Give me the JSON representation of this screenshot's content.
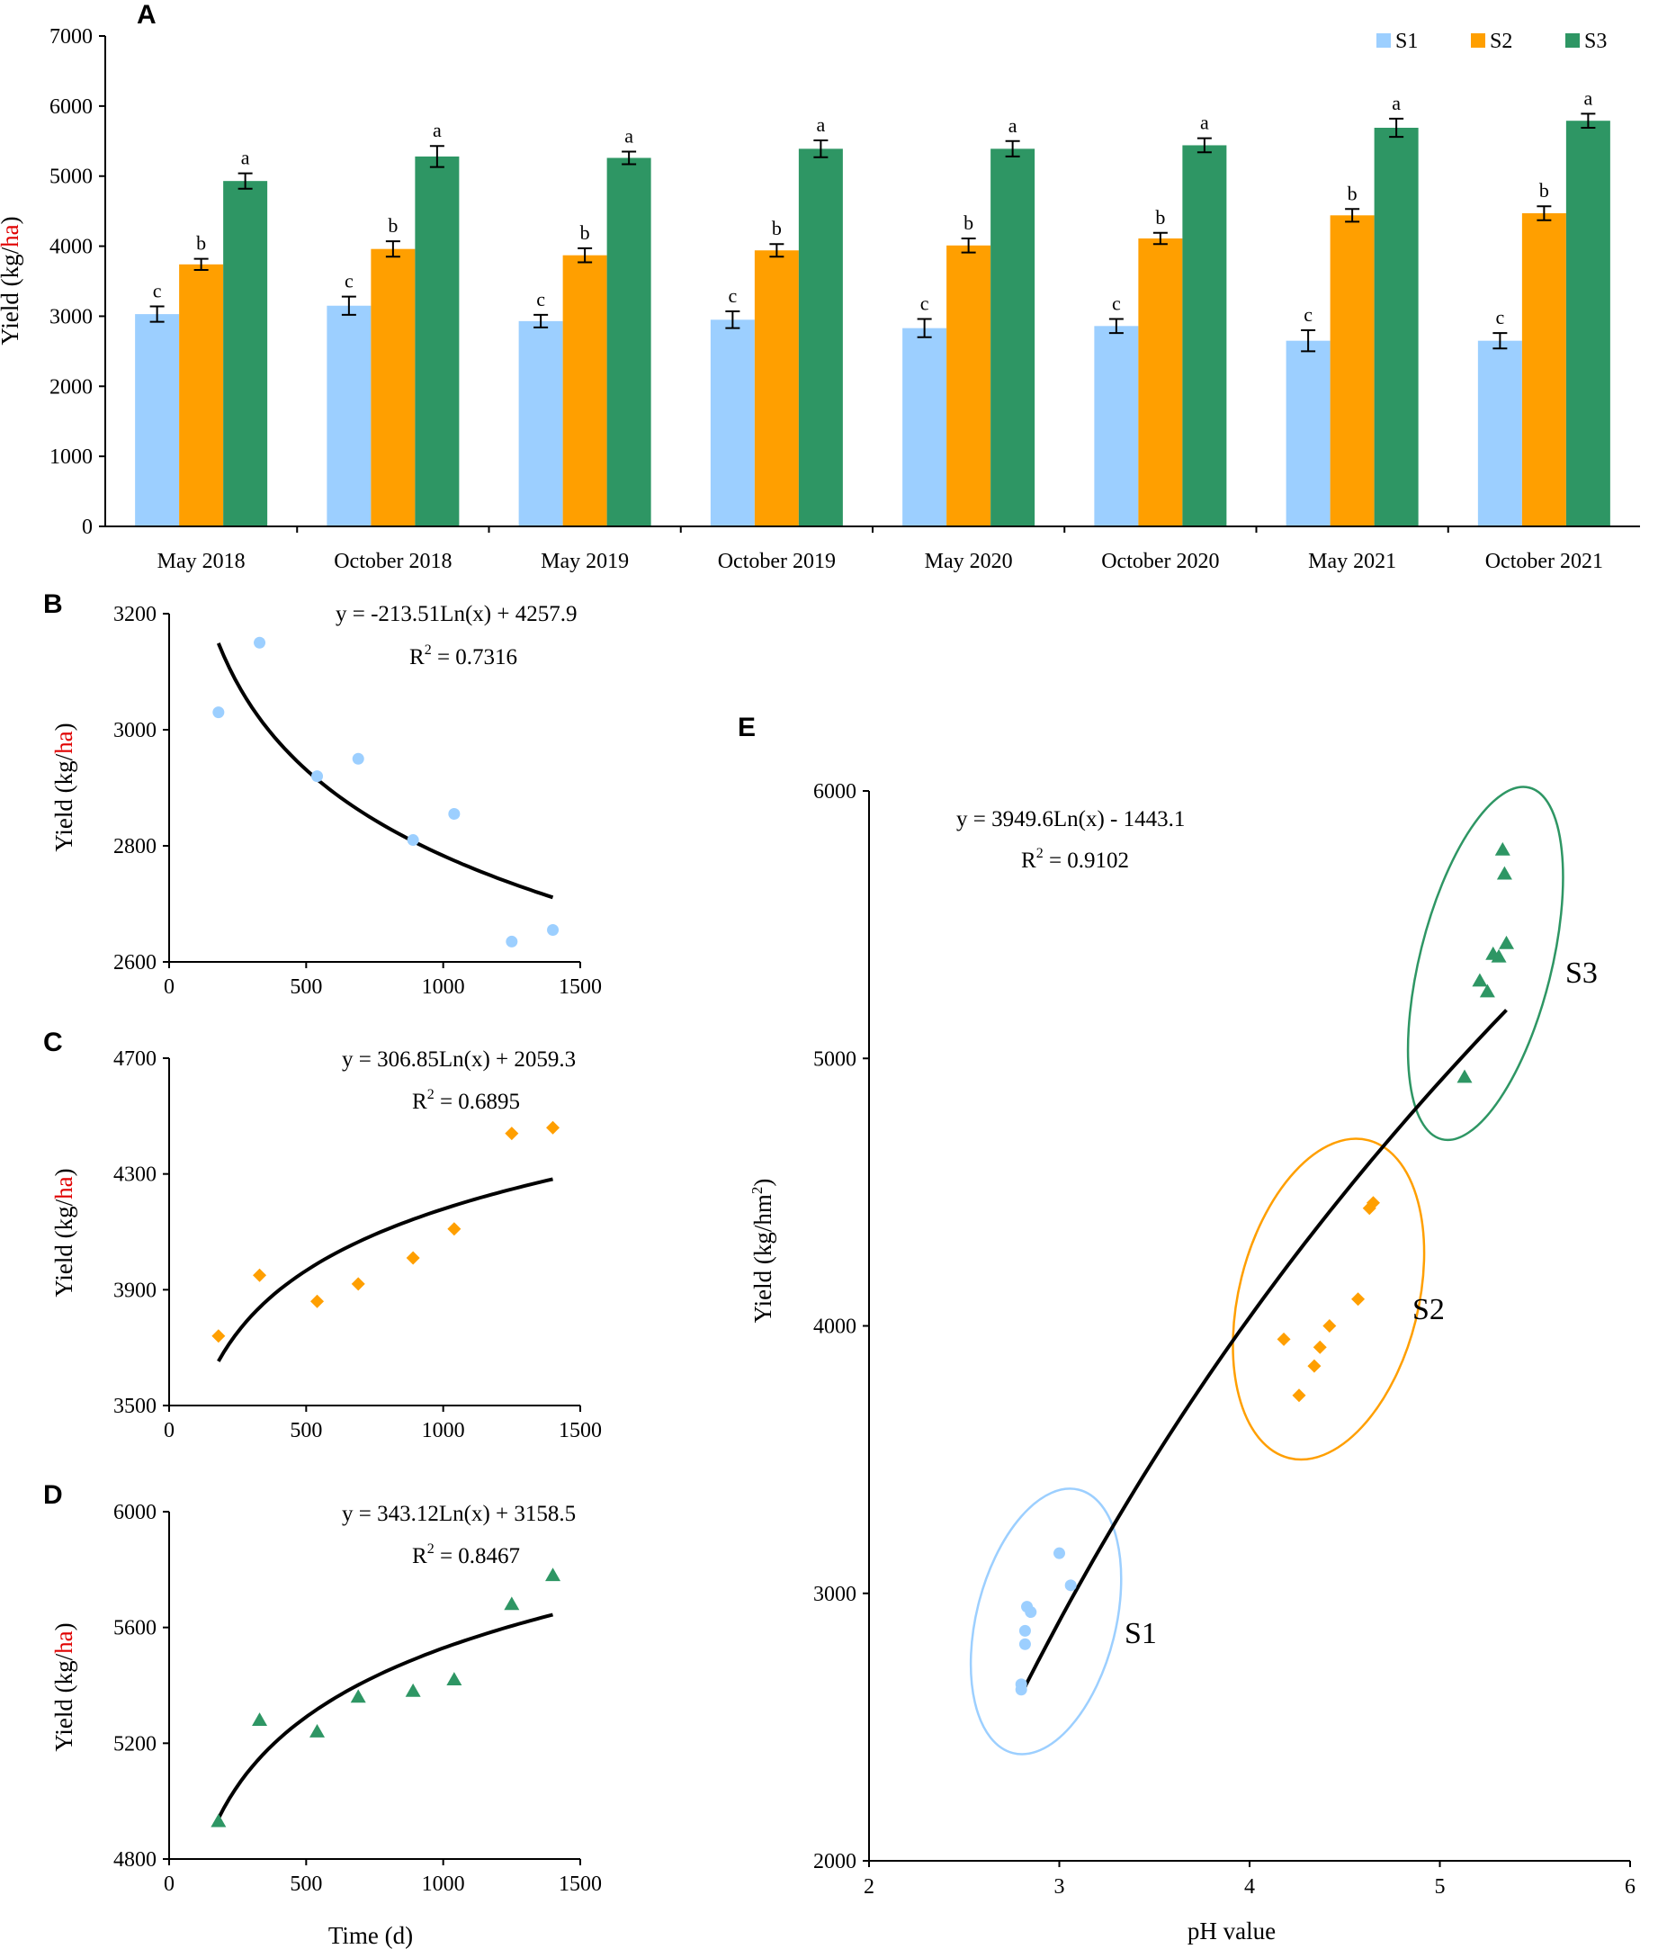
{
  "colors": {
    "S1": "#9ccfff",
    "S2": "#ff9f00",
    "S3": "#2e9664",
    "fit": "#000000",
    "unit_highlight": "#e00000"
  },
  "chart_data": [
    {
      "panel": "A",
      "type": "bar",
      "categories": [
        "May 2018",
        "October 2018",
        "May 2019",
        "October 2019",
        "May 2020",
        "October 2020",
        "May 2021",
        "October 2021"
      ],
      "series": [
        {
          "name": "S1",
          "values": [
            3030,
            3150,
            2930,
            2950,
            2830,
            2860,
            2650,
            2650
          ],
          "errors": [
            110,
            130,
            90,
            120,
            130,
            100,
            150,
            110
          ],
          "letters": [
            "c",
            "c",
            "c",
            "c",
            "c",
            "c",
            "c",
            "c"
          ]
        },
        {
          "name": "S2",
          "values": [
            3740,
            3960,
            3870,
            3940,
            4010,
            4110,
            4440,
            4470
          ],
          "errors": [
            80,
            110,
            100,
            90,
            100,
            80,
            90,
            100
          ],
          "letters": [
            "b",
            "b",
            "b",
            "b",
            "b",
            "b",
            "b",
            "b"
          ]
        },
        {
          "name": "S3",
          "values": [
            4930,
            5280,
            5260,
            5390,
            5390,
            5440,
            5690,
            5790
          ],
          "errors": [
            110,
            150,
            90,
            120,
            110,
            100,
            130,
            100
          ],
          "letters": [
            "a",
            "a",
            "a",
            "a",
            "a",
            "a",
            "a",
            "a"
          ]
        }
      ],
      "ylabel_parts": [
        "Yield (kg/",
        "ha",
        ")"
      ],
      "ylim": [
        0,
        7000
      ],
      "yticks": [
        "0",
        "1000",
        "2000",
        "3000",
        "4000",
        "5000",
        "6000",
        "7000"
      ],
      "legend": [
        "S1",
        "S2",
        "S3"
      ],
      "legend_position": "top-right"
    },
    {
      "panel": "B",
      "type": "scatter",
      "series_name": "S1",
      "marker": "circle",
      "x": [
        180,
        330,
        540,
        690,
        890,
        1040,
        1250,
        1400
      ],
      "y": [
        3030,
        3150,
        2920,
        2950,
        2810,
        2855,
        2635,
        2655
      ],
      "fit": {
        "a": -213.51,
        "b": 4257.9,
        "x_range": [
          180,
          1400
        ]
      },
      "equation": "y = -213.51Ln(x) + 4257.9",
      "r2_label": "R",
      "r2_sup": "2",
      "r2_value": " = 0.7316",
      "ylabel_parts": [
        "Yield (kg/",
        "ha",
        ")"
      ],
      "xlim": [
        0,
        1500
      ],
      "ylim": [
        2600,
        3200
      ],
      "xticks": [
        "0",
        "500",
        "1000",
        "1500"
      ],
      "yticks": [
        "2600",
        "2800",
        "3000",
        "3200"
      ]
    },
    {
      "panel": "C",
      "type": "scatter",
      "series_name": "S2",
      "marker": "diamond",
      "x": [
        180,
        330,
        540,
        690,
        890,
        1040,
        1250,
        1400
      ],
      "y": [
        3740,
        3950,
        3860,
        3920,
        4010,
        4110,
        4440,
        4460
      ],
      "fit": {
        "a": 306.85,
        "b": 2059.3,
        "x_range": [
          180,
          1400
        ]
      },
      "equation": "y = 306.85Ln(x) + 2059.3",
      "r2_label": "R",
      "r2_sup": "2",
      "r2_value": " = 0.6895",
      "ylabel_parts": [
        "Yield (kg/",
        "ha",
        ")"
      ],
      "xlim": [
        0,
        1500
      ],
      "ylim": [
        3500,
        4700
      ],
      "xticks": [
        "0",
        "500",
        "1000",
        "1500"
      ],
      "yticks": [
        "3500",
        "3900",
        "4300",
        "4700"
      ]
    },
    {
      "panel": "D",
      "type": "scatter",
      "series_name": "S3",
      "marker": "triangle",
      "x": [
        180,
        330,
        540,
        690,
        890,
        1040,
        1250,
        1400
      ],
      "y": [
        4930,
        5280,
        5240,
        5360,
        5380,
        5420,
        5680,
        5780
      ],
      "fit": {
        "a": 343.12,
        "b": 3158.5,
        "x_range": [
          180,
          1400
        ]
      },
      "equation": "y = 343.12Ln(x) + 3158.5",
      "r2_label": "R",
      "r2_sup": "2",
      "r2_value": " = 0.8467",
      "ylabel_parts": [
        "Yield (kg/",
        "ha",
        ")"
      ],
      "xlabel": "Time (d)",
      "xlim": [
        0,
        1500
      ],
      "ylim": [
        4800,
        6000
      ],
      "xticks": [
        "0",
        "500",
        "1000",
        "1500"
      ],
      "yticks": [
        "4800",
        "5200",
        "5600",
        "6000"
      ]
    },
    {
      "panel": "E",
      "type": "scatter",
      "series": [
        {
          "name": "S1",
          "marker": "circle",
          "x": [
            2.8,
            2.8,
            2.82,
            2.82,
            2.83,
            2.85,
            3.0,
            3.06
          ],
          "y": [
            2640,
            2660,
            2810,
            2860,
            2950,
            2930,
            3150,
            3030
          ]
        },
        {
          "name": "S2",
          "marker": "diamond",
          "x": [
            4.18,
            4.26,
            4.34,
            4.37,
            4.42,
            4.57,
            4.63,
            4.65
          ],
          "y": [
            3950,
            3740,
            3850,
            3920,
            4000,
            4100,
            4440,
            4460
          ]
        },
        {
          "name": "S3",
          "marker": "triangle",
          "x": [
            5.13,
            5.21,
            5.25,
            5.28,
            5.31,
            5.34,
            5.33,
            5.35
          ],
          "y": [
            4930,
            5290,
            5250,
            5390,
            5380,
            5690,
            5780,
            5430
          ]
        }
      ],
      "fit": {
        "a": 3949.6,
        "b": -1443.1,
        "x_range": [
          2.8,
          5.35
        ]
      },
      "equation": "y = 3949.6Ln(x) - 1443.1",
      "r2_label": "R",
      "r2_sup": "2",
      "r2_value": " = 0.9102",
      "cluster_labels": [
        "S1",
        "S2",
        "S3"
      ],
      "ylabel": "Yield (kg/hm",
      "ylabel_sup": "2",
      "ylabel_close": ")",
      "xlabel": "pH value",
      "xlim": [
        2,
        6
      ],
      "ylim": [
        2000,
        6000
      ],
      "xticks": [
        "2",
        "3",
        "4",
        "5",
        "6"
      ],
      "yticks": [
        "2000",
        "3000",
        "4000",
        "5000",
        "6000"
      ]
    }
  ]
}
